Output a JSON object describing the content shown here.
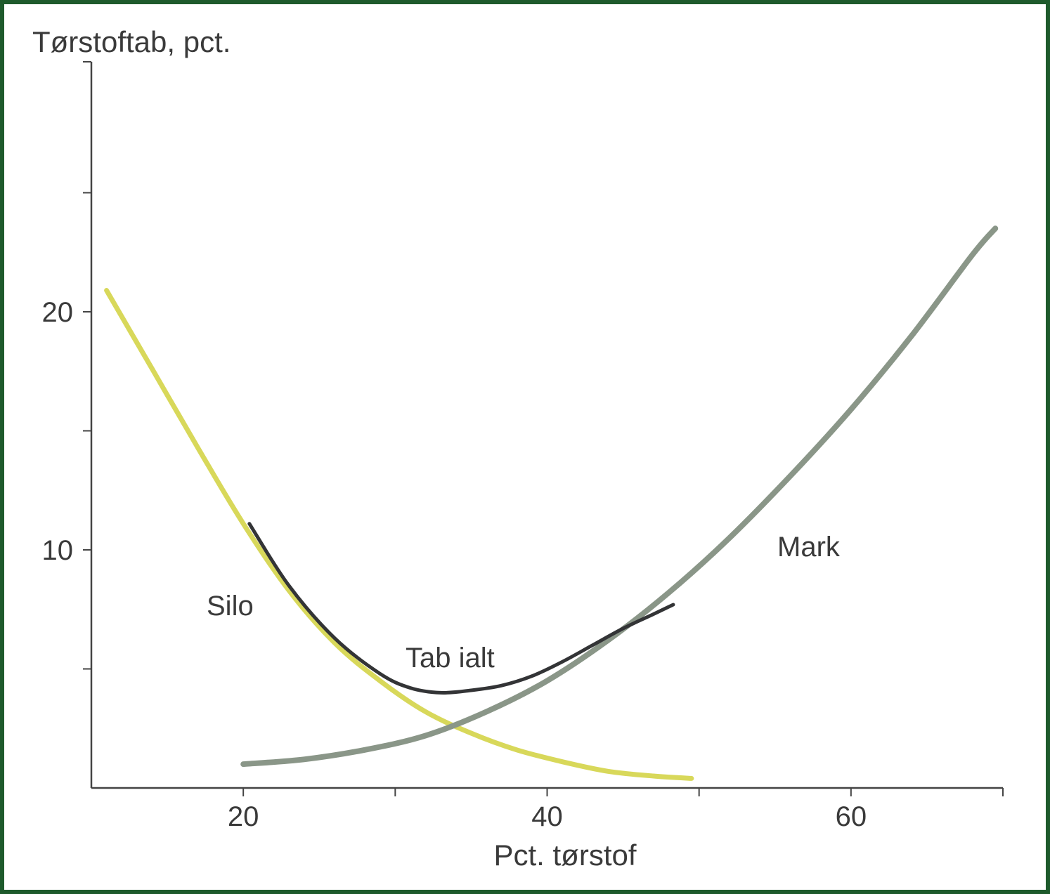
{
  "chart_data": {
    "type": "line",
    "ylabel": "Tørstoftab, pct.",
    "xlabel": "Pct. tørstof",
    "xlim": [
      10,
      70
    ],
    "ylim": [
      0,
      30.5
    ],
    "x_ticks": [
      20,
      40,
      60
    ],
    "x_minor_ticks": [
      30,
      50,
      70
    ],
    "y_ticks": [
      10,
      20
    ],
    "y_minor_ticks": [
      5,
      15,
      25
    ],
    "grid": false,
    "series": [
      {
        "name": "Silo",
        "color": "#d8d85a",
        "points": [
          [
            11,
            20.9
          ],
          [
            14,
            17.6
          ],
          [
            17,
            14.3
          ],
          [
            20,
            11.1
          ],
          [
            23,
            8.3
          ],
          [
            26,
            6.1
          ],
          [
            29,
            4.5
          ],
          [
            32,
            3.2
          ],
          [
            35,
            2.3
          ],
          [
            38,
            1.6
          ],
          [
            41,
            1.1
          ],
          [
            44,
            0.7
          ],
          [
            47,
            0.5
          ],
          [
            49.5,
            0.4
          ]
        ]
      },
      {
        "name": "Mark",
        "color": "#8a9688",
        "points": [
          [
            20,
            1.0
          ],
          [
            24,
            1.2
          ],
          [
            28,
            1.6
          ],
          [
            32,
            2.2
          ],
          [
            36,
            3.2
          ],
          [
            40,
            4.5
          ],
          [
            44,
            6.2
          ],
          [
            48,
            8.2
          ],
          [
            52,
            10.5
          ],
          [
            56,
            13.1
          ],
          [
            60,
            15.9
          ],
          [
            64,
            19.0
          ],
          [
            68,
            22.4
          ],
          [
            69.5,
            23.5
          ]
        ]
      },
      {
        "name": "Tab ialt",
        "color": "#333436",
        "points": [
          [
            20.4,
            11.1
          ],
          [
            23,
            8.5
          ],
          [
            26,
            6.3
          ],
          [
            29,
            4.8
          ],
          [
            31,
            4.2
          ],
          [
            33,
            4.0
          ],
          [
            35,
            4.1
          ],
          [
            37,
            4.3
          ],
          [
            39,
            4.7
          ],
          [
            41,
            5.3
          ],
          [
            43,
            6.0
          ],
          [
            45,
            6.7
          ],
          [
            47,
            7.3
          ],
          [
            48.3,
            7.7
          ]
        ]
      }
    ]
  }
}
